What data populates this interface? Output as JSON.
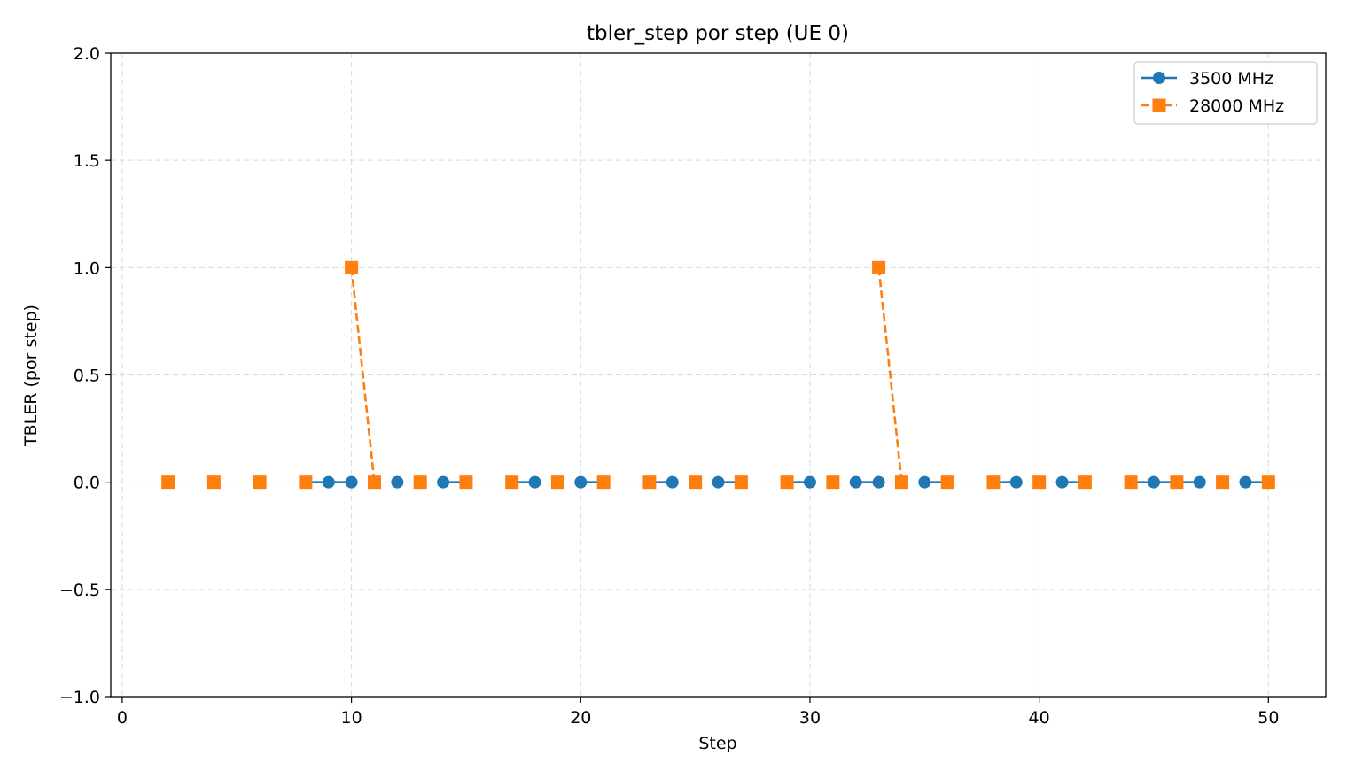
{
  "chart_data": {
    "type": "line",
    "title": "tbler_step por step (UE 0)",
    "xlabel": "Step",
    "ylabel": "TBLER (por step)",
    "xlim": [
      -0.5,
      52.5
    ],
    "ylim": [
      -1.0,
      2.0
    ],
    "xticks": [
      0,
      10,
      20,
      30,
      40,
      50
    ],
    "yticks": [
      -1.0,
      -0.5,
      0.0,
      0.5,
      1.0,
      1.5,
      2.0
    ],
    "ytick_labels": [
      "−1.0",
      "−0.5",
      "0.0",
      "0.5",
      "1.0",
      "1.5",
      "2.0"
    ],
    "grid": true,
    "legend_position": "top-right",
    "series": [
      {
        "name": "3500 MHz",
        "color": "#1f77b4",
        "marker": "circle",
        "linestyle": "solid",
        "segments": [
          [
            {
              "x": 2,
              "y": 0
            }
          ],
          [
            {
              "x": 4,
              "y": 0
            }
          ],
          [
            {
              "x": 6,
              "y": 0
            }
          ],
          [
            {
              "x": 8,
              "y": 0
            },
            {
              "x": 9,
              "y": 0
            },
            {
              "x": 10,
              "y": 0
            }
          ],
          [
            {
              "x": 12,
              "y": 0
            }
          ],
          [
            {
              "x": 14,
              "y": 0
            },
            {
              "x": 15,
              "y": 0
            }
          ],
          [
            {
              "x": 17,
              "y": 0
            },
            {
              "x": 18,
              "y": 0
            }
          ],
          [
            {
              "x": 20,
              "y": 0
            },
            {
              "x": 21,
              "y": 0
            }
          ],
          [
            {
              "x": 23,
              "y": 0
            },
            {
              "x": 24,
              "y": 0
            }
          ],
          [
            {
              "x": 26,
              "y": 0
            },
            {
              "x": 27,
              "y": 0
            }
          ],
          [
            {
              "x": 29,
              "y": 0
            },
            {
              "x": 30,
              "y": 0
            }
          ],
          [
            {
              "x": 32,
              "y": 0
            },
            {
              "x": 33,
              "y": 0
            }
          ],
          [
            {
              "x": 35,
              "y": 0
            },
            {
              "x": 36,
              "y": 0
            }
          ],
          [
            {
              "x": 38,
              "y": 0
            },
            {
              "x": 39,
              "y": 0
            }
          ],
          [
            {
              "x": 41,
              "y": 0
            },
            {
              "x": 42,
              "y": 0
            }
          ],
          [
            {
              "x": 44,
              "y": 0
            },
            {
              "x": 45,
              "y": 0
            },
            {
              "x": 46,
              "y": 0
            },
            {
              "x": 47,
              "y": 0
            }
          ],
          [
            {
              "x": 49,
              "y": 0
            },
            {
              "x": 50,
              "y": 0
            }
          ]
        ]
      },
      {
        "name": "28000 MHz",
        "color": "#ff7f0e",
        "marker": "square",
        "linestyle": "dashed",
        "segments": [
          [
            {
              "x": 2,
              "y": 0
            }
          ],
          [
            {
              "x": 4,
              "y": 0
            }
          ],
          [
            {
              "x": 6,
              "y": 0
            }
          ],
          [
            {
              "x": 8,
              "y": 0
            }
          ],
          [
            {
              "x": 10,
              "y": 1
            },
            {
              "x": 11,
              "y": 0
            }
          ],
          [
            {
              "x": 13,
              "y": 0
            }
          ],
          [
            {
              "x": 15,
              "y": 0
            }
          ],
          [
            {
              "x": 17,
              "y": 0
            }
          ],
          [
            {
              "x": 19,
              "y": 0
            }
          ],
          [
            {
              "x": 21,
              "y": 0
            }
          ],
          [
            {
              "x": 23,
              "y": 0
            }
          ],
          [
            {
              "x": 25,
              "y": 0
            }
          ],
          [
            {
              "x": 27,
              "y": 0
            }
          ],
          [
            {
              "x": 29,
              "y": 0
            }
          ],
          [
            {
              "x": 31,
              "y": 0
            }
          ],
          [
            {
              "x": 33,
              "y": 1
            },
            {
              "x": 34,
              "y": 0
            }
          ],
          [
            {
              "x": 36,
              "y": 0
            }
          ],
          [
            {
              "x": 38,
              "y": 0
            }
          ],
          [
            {
              "x": 40,
              "y": 0
            }
          ],
          [
            {
              "x": 42,
              "y": 0
            }
          ],
          [
            {
              "x": 44,
              "y": 0
            }
          ],
          [
            {
              "x": 46,
              "y": 0
            }
          ],
          [
            {
              "x": 48,
              "y": 0
            }
          ],
          [
            {
              "x": 50,
              "y": 0
            }
          ]
        ]
      }
    ]
  }
}
